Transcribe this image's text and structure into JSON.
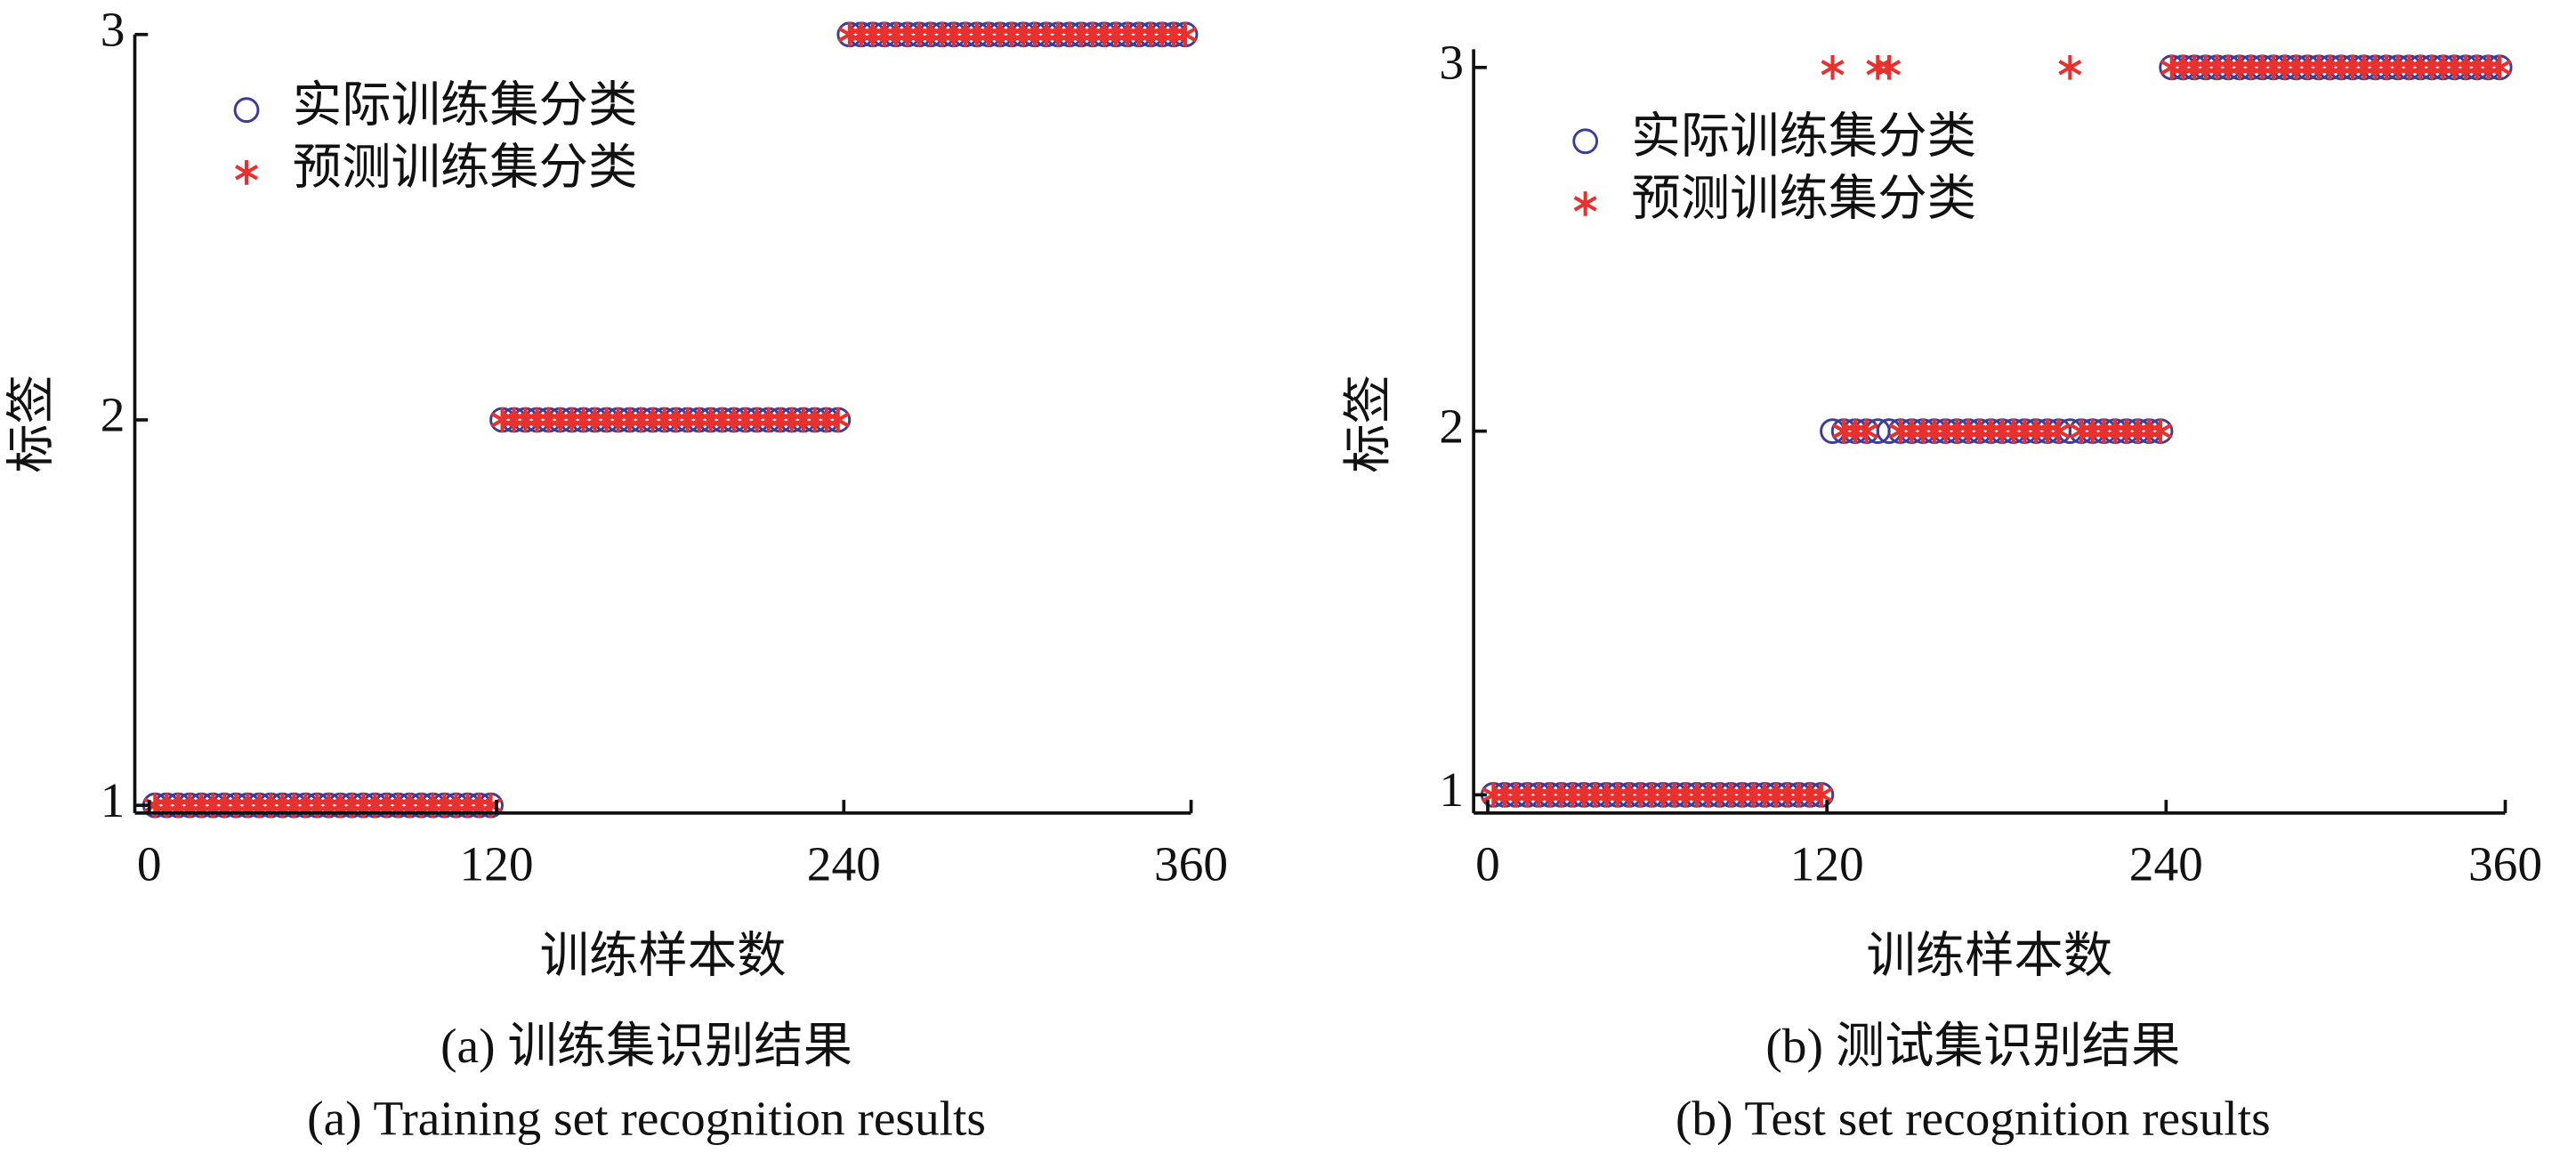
{
  "chart_data": [
    {
      "type": "scatter",
      "xlabel": "训练样本数",
      "ylabel": "标签",
      "caption": [
        "(a) 训练集识别结果",
        "(a) Training set recognition results"
      ],
      "xlim": [
        -5,
        360
      ],
      "ylim": [
        0.98,
        3
      ],
      "xticks": [
        0,
        120,
        240,
        360
      ],
      "yticks": [
        1,
        2,
        3
      ],
      "x": [
        2,
        6,
        10,
        14,
        18,
        22,
        26,
        30,
        34,
        38,
        42,
        46,
        50,
        54,
        58,
        62,
        66,
        70,
        74,
        78,
        82,
        86,
        90,
        94,
        98,
        102,
        106,
        110,
        114,
        118,
        122,
        126,
        130,
        134,
        138,
        142,
        146,
        150,
        154,
        158,
        162,
        166,
        170,
        174,
        178,
        182,
        186,
        190,
        194,
        198,
        202,
        206,
        210,
        214,
        218,
        222,
        226,
        230,
        234,
        238,
        242,
        246,
        250,
        254,
        258,
        262,
        266,
        270,
        274,
        278,
        282,
        286,
        290,
        294,
        298,
        302,
        306,
        310,
        314,
        318,
        322,
        326,
        330,
        334,
        338,
        342,
        346,
        350,
        354,
        358
      ],
      "legend": "upper left",
      "series": [
        {
          "name": "实际训练集分类",
          "color": "#3d3d96",
          "marker": "circle",
          "values": [
            1,
            1,
            1,
            1,
            1,
            1,
            1,
            1,
            1,
            1,
            1,
            1,
            1,
            1,
            1,
            1,
            1,
            1,
            1,
            1,
            1,
            1,
            1,
            1,
            1,
            1,
            1,
            1,
            1,
            1,
            2,
            2,
            2,
            2,
            2,
            2,
            2,
            2,
            2,
            2,
            2,
            2,
            2,
            2,
            2,
            2,
            2,
            2,
            2,
            2,
            2,
            2,
            2,
            2,
            2,
            2,
            2,
            2,
            2,
            2,
            3,
            3,
            3,
            3,
            3,
            3,
            3,
            3,
            3,
            3,
            3,
            3,
            3,
            3,
            3,
            3,
            3,
            3,
            3,
            3,
            3,
            3,
            3,
            3,
            3,
            3,
            3,
            3,
            3,
            3
          ]
        },
        {
          "name": "预测训练集分类",
          "color": "#e8302e",
          "marker": "star",
          "values": [
            1,
            1,
            1,
            1,
            1,
            1,
            1,
            1,
            1,
            1,
            1,
            1,
            1,
            1,
            1,
            1,
            1,
            1,
            1,
            1,
            1,
            1,
            1,
            1,
            1,
            1,
            1,
            1,
            1,
            1,
            2,
            2,
            2,
            2,
            2,
            2,
            2,
            2,
            2,
            2,
            2,
            2,
            2,
            2,
            2,
            2,
            2,
            2,
            2,
            2,
            2,
            2,
            2,
            2,
            2,
            2,
            2,
            2,
            2,
            2,
            3,
            3,
            3,
            3,
            3,
            3,
            3,
            3,
            3,
            3,
            3,
            3,
            3,
            3,
            3,
            3,
            3,
            3,
            3,
            3,
            3,
            3,
            3,
            3,
            3,
            3,
            3,
            3,
            3,
            3
          ]
        }
      ]
    },
    {
      "type": "scatter",
      "xlabel": "训练样本数",
      "ylabel": "标签",
      "caption": [
        "(b) 测试集识别结果",
        "(b) Test set recognition results"
      ],
      "xlim": [
        -5,
        360
      ],
      "ylim": [
        0.95,
        3.05
      ],
      "xticks": [
        0,
        120,
        240,
        360
      ],
      "yticks": [
        1,
        2,
        3
      ],
      "x": [
        2,
        6,
        10,
        14,
        18,
        22,
        26,
        30,
        34,
        38,
        42,
        46,
        50,
        54,
        58,
        62,
        66,
        70,
        74,
        78,
        82,
        86,
        90,
        94,
        98,
        102,
        106,
        110,
        114,
        118,
        122,
        126,
        130,
        134,
        138,
        142,
        146,
        150,
        154,
        158,
        162,
        166,
        170,
        174,
        178,
        182,
        186,
        190,
        194,
        198,
        202,
        206,
        210,
        214,
        218,
        222,
        226,
        230,
        234,
        238,
        242,
        246,
        250,
        254,
        258,
        262,
        266,
        270,
        274,
        278,
        282,
        286,
        290,
        294,
        298,
        302,
        306,
        310,
        314,
        318,
        322,
        326,
        330,
        334,
        338,
        342,
        346,
        350,
        354,
        358
      ],
      "legend": "upper left",
      "series": [
        {
          "name": "实际训练集分类",
          "color": "#3d3d96",
          "marker": "circle",
          "values": [
            1,
            1,
            1,
            1,
            1,
            1,
            1,
            1,
            1,
            1,
            1,
            1,
            1,
            1,
            1,
            1,
            1,
            1,
            1,
            1,
            1,
            1,
            1,
            1,
            1,
            1,
            1,
            1,
            1,
            1,
            2,
            2,
            2,
            2,
            2,
            2,
            2,
            2,
            2,
            2,
            2,
            2,
            2,
            2,
            2,
            2,
            2,
            2,
            2,
            2,
            2,
            2,
            2,
            2,
            2,
            2,
            2,
            2,
            2,
            2,
            3,
            3,
            3,
            3,
            3,
            3,
            3,
            3,
            3,
            3,
            3,
            3,
            3,
            3,
            3,
            3,
            3,
            3,
            3,
            3,
            3,
            3,
            3,
            3,
            3,
            3,
            3,
            3,
            3,
            3
          ]
        },
        {
          "name": "预测训练集分类",
          "color": "#e8302e",
          "marker": "star",
          "values": [
            1,
            1,
            1,
            1,
            1,
            1,
            1,
            1,
            1,
            1,
            1,
            1,
            1,
            1,
            1,
            1,
            1,
            1,
            1,
            1,
            1,
            1,
            1,
            1,
            1,
            1,
            1,
            1,
            1,
            1,
            3,
            2,
            2,
            2,
            3,
            3,
            2,
            2,
            2,
            2,
            2,
            2,
            2,
            2,
            2,
            2,
            2,
            2,
            2,
            2,
            2,
            3,
            2,
            2,
            2,
            2,
            2,
            2,
            2,
            2,
            3,
            3,
            3,
            3,
            3,
            3,
            3,
            3,
            3,
            3,
            3,
            3,
            3,
            3,
            3,
            3,
            3,
            3,
            3,
            3,
            3,
            3,
            3,
            3,
            3,
            3,
            3,
            3,
            3,
            3
          ]
        }
      ]
    }
  ]
}
